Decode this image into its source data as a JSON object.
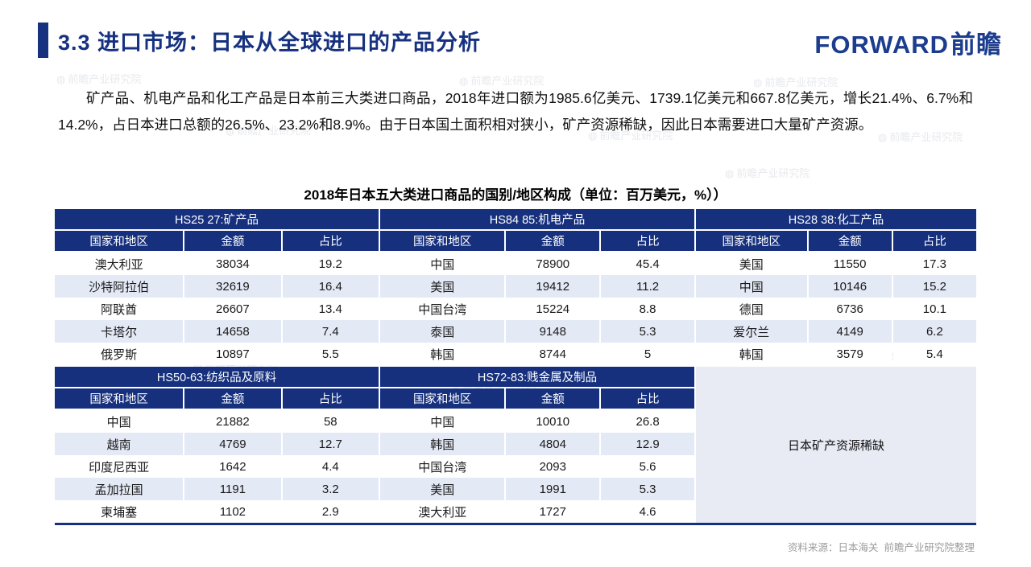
{
  "header": {
    "title": "3.3 进口市场：日本从全球进口的产品分析",
    "logo_en": "FORWARD",
    "logo_cn": "前瞻"
  },
  "intro": {
    "text": "矿产品、机电产品和化工产品是日本前三大类进口商品，2018年进口额为1985.6亿美元、1739.1亿美元和667.8亿美元，增长21.4%、6.7%和14.2%，占日本进口总额的26.5%、23.2%和8.9%。由于日本国土面积相对狭小，矿产资源稀缺，因此日本需要进口大量矿产资源。"
  },
  "table": {
    "title": "2018年日本五大类进口商品的国别/地区构成（单位：百万美元，%））",
    "column_headers": [
      "国家和地区",
      "金额",
      "占比"
    ],
    "top_sections": [
      {
        "header": "HS25 27:矿产品",
        "rows": [
          [
            "澳大利亚",
            "38034",
            "19.2"
          ],
          [
            "沙特阿拉伯",
            "32619",
            "16.4"
          ],
          [
            "阿联酋",
            "26607",
            "13.4"
          ],
          [
            "卡塔尔",
            "14658",
            "7.4"
          ],
          [
            "俄罗斯",
            "10897",
            "5.5"
          ]
        ]
      },
      {
        "header": "HS84 85:机电产品",
        "rows": [
          [
            "中国",
            "78900",
            "45.4"
          ],
          [
            "美国",
            "19412",
            "11.2"
          ],
          [
            "中国台湾",
            "15224",
            "8.8"
          ],
          [
            "泰国",
            "9148",
            "5.3"
          ],
          [
            "韩国",
            "8744",
            "5"
          ]
        ]
      },
      {
        "header": "HS28 38:化工产品",
        "rows": [
          [
            "美国",
            "11550",
            "17.3"
          ],
          [
            "中国",
            "10146",
            "15.2"
          ],
          [
            "德国",
            "6736",
            "10.1"
          ],
          [
            "爱尔兰",
            "4149",
            "6.2"
          ],
          [
            "韩国",
            "3579",
            "5.4"
          ]
        ]
      }
    ],
    "bottom_sections": [
      {
        "header": "HS50-63:纺织品及原料",
        "rows": [
          [
            "中国",
            "21882",
            "58"
          ],
          [
            "越南",
            "4769",
            "12.7"
          ],
          [
            "印度尼西亚",
            "1642",
            "4.4"
          ],
          [
            "孟加拉国",
            "1191",
            "3.2"
          ],
          [
            "柬埔塞",
            "1102",
            "2.9"
          ]
        ]
      },
      {
        "header": "HS72-83:贱金属及制品",
        "rows": [
          [
            "中国",
            "10010",
            "26.8"
          ],
          [
            "韩国",
            "4804",
            "12.9"
          ],
          [
            "中国台湾",
            "2093",
            "5.6"
          ],
          [
            "美国",
            "1991",
            "5.3"
          ],
          [
            "澳大利亚",
            "1727",
            "4.6"
          ]
        ]
      }
    ],
    "note_cell": "日本矿产资源稀缺"
  },
  "watermark": {
    "text": "前瞻产业研究院"
  },
  "footer": {
    "source": "资料来源：日本海关  前瞻产业研究院整理"
  },
  "colors": {
    "navy": "#16307e",
    "title_navy": "#16317f",
    "alt_row": "#e4e9f6",
    "note_bg": "#e8ebf4",
    "footer_gray": "#9c9c9c"
  }
}
